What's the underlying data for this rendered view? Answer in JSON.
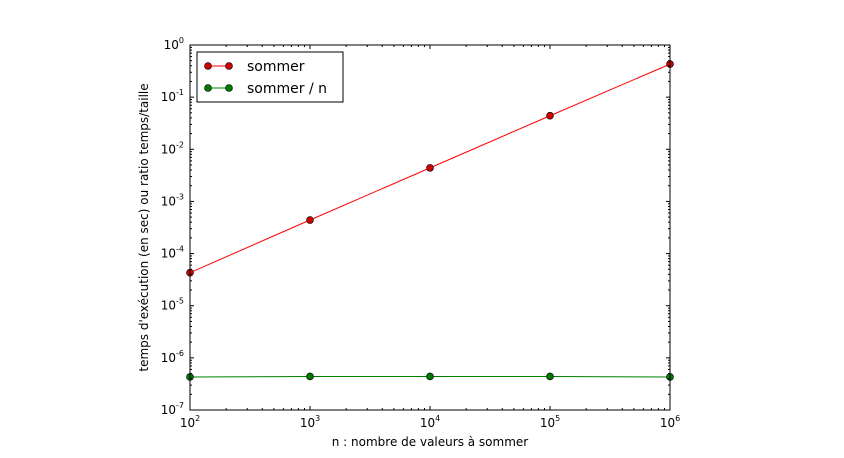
{
  "chart_data": {
    "type": "line",
    "title": "",
    "xlabel": "n : nombre de valeurs à sommer",
    "ylabel": "temps d'exécution (en sec) ou ratio temps/taille",
    "xscale": "log",
    "yscale": "log",
    "xlim": [
      100,
      1000000
    ],
    "ylim": [
      1e-07,
      1
    ],
    "grid": false,
    "legend": "top-left",
    "x_ticks": [
      {
        "base": "10",
        "exp": "2",
        "value": 100
      },
      {
        "base": "10",
        "exp": "3",
        "value": 1000
      },
      {
        "base": "10",
        "exp": "4",
        "value": 10000
      },
      {
        "base": "10",
        "exp": "5",
        "value": 100000
      },
      {
        "base": "10",
        "exp": "6",
        "value": 1000000
      }
    ],
    "y_ticks": [
      {
        "base": "10",
        "exp": "-7",
        "value": 1e-07
      },
      {
        "base": "10",
        "exp": "-6",
        "value": 1e-06
      },
      {
        "base": "10",
        "exp": "-5",
        "value": 1e-05
      },
      {
        "base": "10",
        "exp": "-4",
        "value": 0.0001
      },
      {
        "base": "10",
        "exp": "-3",
        "value": 0.001
      },
      {
        "base": "10",
        "exp": "-2",
        "value": 0.01
      },
      {
        "base": "10",
        "exp": "-1",
        "value": 0.1
      },
      {
        "base": "10",
        "exp": "0",
        "value": 1
      }
    ],
    "x": [
      100,
      1000,
      10000,
      100000,
      1000000
    ],
    "series": [
      {
        "name": "sommer",
        "color": "#ff0000",
        "marker_color": "#cc0000",
        "values": [
          4.3e-05,
          0.00044,
          0.0044,
          0.044,
          0.43
        ]
      },
      {
        "name": "sommer / n",
        "color": "#008000",
        "marker_color": "#007700",
        "values": [
          4.3e-07,
          4.4e-07,
          4.4e-07,
          4.4e-07,
          4.3e-07
        ]
      }
    ]
  }
}
